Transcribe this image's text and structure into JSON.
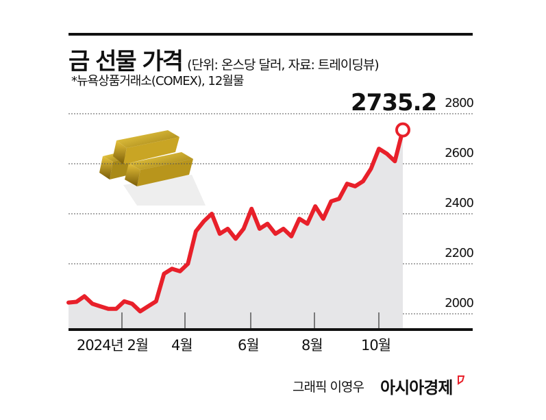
{
  "header": {
    "title": "금 선물 가격",
    "unit_source": "(단위: 온스당 달러, 자료: 트레이딩뷰)",
    "subtitle": "*뉴욕상품거래소(COMEX), 12월물"
  },
  "annotation": {
    "last_value": "2735.2"
  },
  "footer": {
    "credit": "그래픽 이영우",
    "brand": "아시아경제"
  },
  "colors": {
    "line": "#e8202a",
    "area": "#e6e6e8",
    "grid": "#555555",
    "axis": "#111111",
    "brand_accent": "#e8202a"
  },
  "chart_data": {
    "type": "line",
    "title": "금 선물 가격",
    "subtitle": "*뉴욕상품거래소(COMEX), 12월물",
    "ylabel": "온스당 달러",
    "source": "트레이딩뷰",
    "ylim": [
      1940,
      2820
    ],
    "yticks": [
      2000,
      2200,
      2400,
      2600,
      2800
    ],
    "xticks": [
      "2024년 2월",
      "4월",
      "6월",
      "8월",
      "10월"
    ],
    "grid": "horizontal dotted",
    "fill_under_line": true,
    "last_point_label": "2735.2",
    "series": [
      {
        "name": "금 선물 가격",
        "x": [
          "2024-01",
          "2024-01",
          "2024-01",
          "2024-01",
          "2024-01",
          "2024-01",
          "2024-01",
          "2024-02",
          "2024-02",
          "2024-02",
          "2024-02",
          "2024-03",
          "2024-03",
          "2024-03",
          "2024-03",
          "2024-04",
          "2024-04",
          "2024-04",
          "2024-04",
          "2024-05",
          "2024-05",
          "2024-05",
          "2024-05",
          "2024-06",
          "2024-06",
          "2024-06",
          "2024-06",
          "2024-07",
          "2024-07",
          "2024-07",
          "2024-07",
          "2024-08",
          "2024-08",
          "2024-08",
          "2024-08",
          "2024-09",
          "2024-09",
          "2024-09",
          "2024-09",
          "2024-10",
          "2024-10",
          "2024-10",
          "2024-10"
        ],
        "values": [
          2045,
          2048,
          2070,
          2040,
          2030,
          2020,
          2020,
          2050,
          2040,
          2010,
          2030,
          2050,
          2160,
          2180,
          2170,
          2200,
          2330,
          2370,
          2400,
          2320,
          2340,
          2300,
          2340,
          2420,
          2340,
          2360,
          2320,
          2340,
          2310,
          2380,
          2360,
          2430,
          2380,
          2450,
          2460,
          2520,
          2510,
          2530,
          2580,
          2660,
          2640,
          2610,
          2735.2
        ]
      }
    ]
  }
}
